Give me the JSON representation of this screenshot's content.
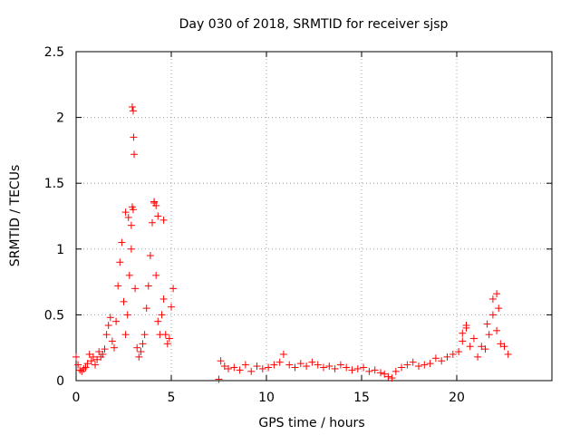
{
  "chart_data": {
    "type": "scatter",
    "title": "Day 030 of 2018, SRMTID for receiver sjsp",
    "xlabel": "GPS time / hours",
    "ylabel": "SRMTID / TECUs",
    "xlim": [
      0,
      25
    ],
    "ylim": [
      0,
      2.5
    ],
    "grid": true,
    "x_ticks": [
      0,
      5,
      10,
      15,
      20
    ],
    "x_tick_labels": [
      "0",
      "5",
      "10",
      "15",
      "20"
    ],
    "y_ticks": [
      0,
      0.5,
      1,
      1.5,
      2,
      2.5
    ],
    "y_tick_labels": [
      "0",
      "0.5",
      "1",
      "1.5",
      "2",
      "2.5"
    ],
    "series": [
      {
        "name": "SRMTID",
        "marker": "plus",
        "color": "#ff0000",
        "x": [
          0.0,
          0.1,
          0.2,
          0.3,
          0.4,
          0.5,
          0.6,
          0.7,
          0.8,
          0.9,
          1.0,
          1.1,
          1.2,
          1.3,
          1.4,
          1.5,
          1.6,
          1.7,
          1.8,
          1.9,
          2.0,
          2.1,
          2.2,
          2.3,
          2.4,
          2.5,
          2.6,
          2.7,
          2.8,
          2.9,
          3.0,
          3.1,
          3.2,
          3.3,
          3.4,
          3.5,
          3.6,
          3.7,
          3.8,
          3.9,
          4.0,
          4.1,
          4.2,
          4.3,
          4.4,
          4.5,
          4.6,
          4.7,
          4.8,
          4.9,
          5.0,
          5.1,
          2.95,
          3.0,
          3.02,
          3.05,
          2.95,
          4.1,
          4.2,
          4.3,
          4.6,
          2.6,
          2.75,
          2.9,
          7.5,
          7.6,
          7.8,
          8.0,
          8.3,
          8.6,
          8.9,
          9.2,
          9.5,
          9.8,
          10.1,
          10.4,
          10.7,
          10.9,
          11.2,
          11.5,
          11.8,
          12.1,
          12.4,
          12.7,
          13.0,
          13.3,
          13.6,
          13.9,
          14.2,
          14.5,
          14.8,
          15.1,
          15.4,
          15.7,
          16.0,
          16.2,
          16.4,
          16.6,
          16.8,
          17.1,
          17.4,
          17.7,
          18.0,
          18.3,
          18.6,
          18.9,
          19.2,
          19.5,
          19.8,
          20.1,
          20.3,
          20.5,
          20.7,
          20.9,
          21.1,
          21.3,
          21.5,
          21.7,
          21.9,
          22.1,
          22.3,
          22.5,
          22.7,
          21.9,
          22.1,
          22.2,
          20.3,
          20.5,
          21.6
        ],
        "y": [
          0.18,
          0.12,
          0.08,
          0.07,
          0.09,
          0.1,
          0.13,
          0.2,
          0.15,
          0.18,
          0.12,
          0.16,
          0.22,
          0.18,
          0.2,
          0.24,
          0.35,
          0.42,
          0.48,
          0.3,
          0.25,
          0.45,
          0.72,
          0.9,
          1.05,
          0.6,
          0.35,
          0.5,
          0.8,
          1.0,
          1.3,
          0.7,
          0.25,
          0.18,
          0.22,
          0.28,
          0.35,
          0.55,
          0.72,
          0.95,
          1.2,
          1.35,
          0.8,
          0.45,
          0.35,
          0.5,
          0.62,
          0.35,
          0.28,
          0.32,
          0.56,
          0.7,
          2.08,
          2.05,
          1.85,
          1.72,
          1.32,
          1.36,
          1.33,
          1.25,
          1.22,
          1.28,
          1.24,
          1.18,
          0.01,
          0.15,
          0.11,
          0.09,
          0.1,
          0.08,
          0.12,
          0.07,
          0.11,
          0.09,
          0.1,
          0.12,
          0.14,
          0.2,
          0.12,
          0.1,
          0.13,
          0.11,
          0.14,
          0.12,
          0.1,
          0.11,
          0.09,
          0.12,
          0.1,
          0.08,
          0.09,
          0.1,
          0.07,
          0.08,
          0.06,
          0.05,
          0.03,
          0.02,
          0.07,
          0.1,
          0.12,
          0.14,
          0.11,
          0.12,
          0.13,
          0.17,
          0.15,
          0.18,
          0.2,
          0.22,
          0.3,
          0.42,
          0.26,
          0.32,
          0.18,
          0.26,
          0.24,
          0.35,
          0.5,
          0.38,
          0.28,
          0.26,
          0.2,
          0.62,
          0.66,
          0.55,
          0.36,
          0.4,
          0.43
        ]
      }
    ]
  }
}
